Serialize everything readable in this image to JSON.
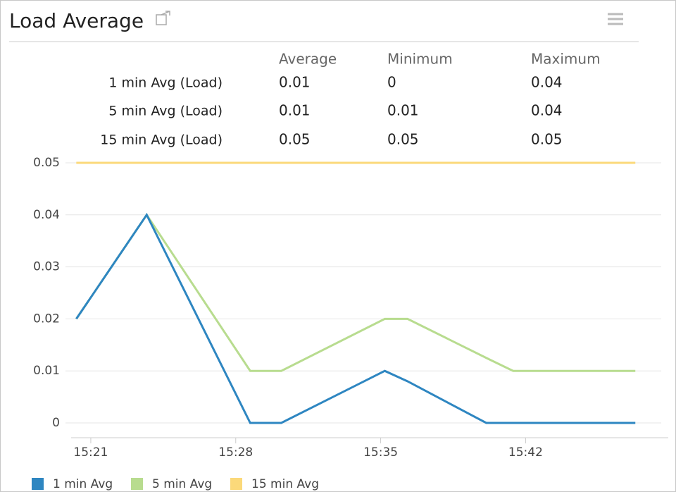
{
  "header": {
    "title": "Load Average"
  },
  "table": {
    "columns": [
      "Average",
      "Minimum",
      "Maximum"
    ],
    "rows": [
      [
        "1 min Avg (Load)",
        "0.01",
        "0",
        "0.04"
      ],
      [
        "5 min Avg (Load)",
        "0.01",
        "0.01",
        "0.04"
      ],
      [
        "15 min Avg (Load)",
        "0.05",
        "0.05",
        "0.05"
      ]
    ]
  },
  "chart_data": {
    "type": "line",
    "x": [
      20.3,
      23.7,
      28.7,
      30.2,
      35.2,
      36.3,
      40.1,
      41.4,
      47.3
    ],
    "series": [
      {
        "name": "1 min Avg",
        "color": "#2e86c1",
        "values": [
          0.02,
          0.04,
          0,
          0,
          0.01,
          0.008,
          0,
          0,
          0
        ]
      },
      {
        "name": "5 min Avg",
        "color": "#b8dc8f",
        "values": [
          0.02,
          0.04,
          0.01,
          0.01,
          0.02,
          0.02,
          0.0125,
          0.01,
          0.01
        ]
      },
      {
        "name": "15 min Avg",
        "color": "#fbd97a",
        "values": [
          0.05,
          0.05,
          0.05,
          0.05,
          0.05,
          0.05,
          0.05,
          0.05,
          0.05
        ]
      }
    ],
    "xlim": [
      20.05,
      48.55
    ],
    "xticks": [
      {
        "value": 21,
        "label": "15:21"
      },
      {
        "value": 28,
        "label": "15:28"
      },
      {
        "value": 35,
        "label": "15:35"
      },
      {
        "value": 42,
        "label": "15:42"
      }
    ],
    "ylim": [
      0,
      0.05
    ],
    "yticks": [
      0,
      0.01,
      0.02,
      0.03,
      0.04,
      0.05
    ],
    "grid": true
  }
}
